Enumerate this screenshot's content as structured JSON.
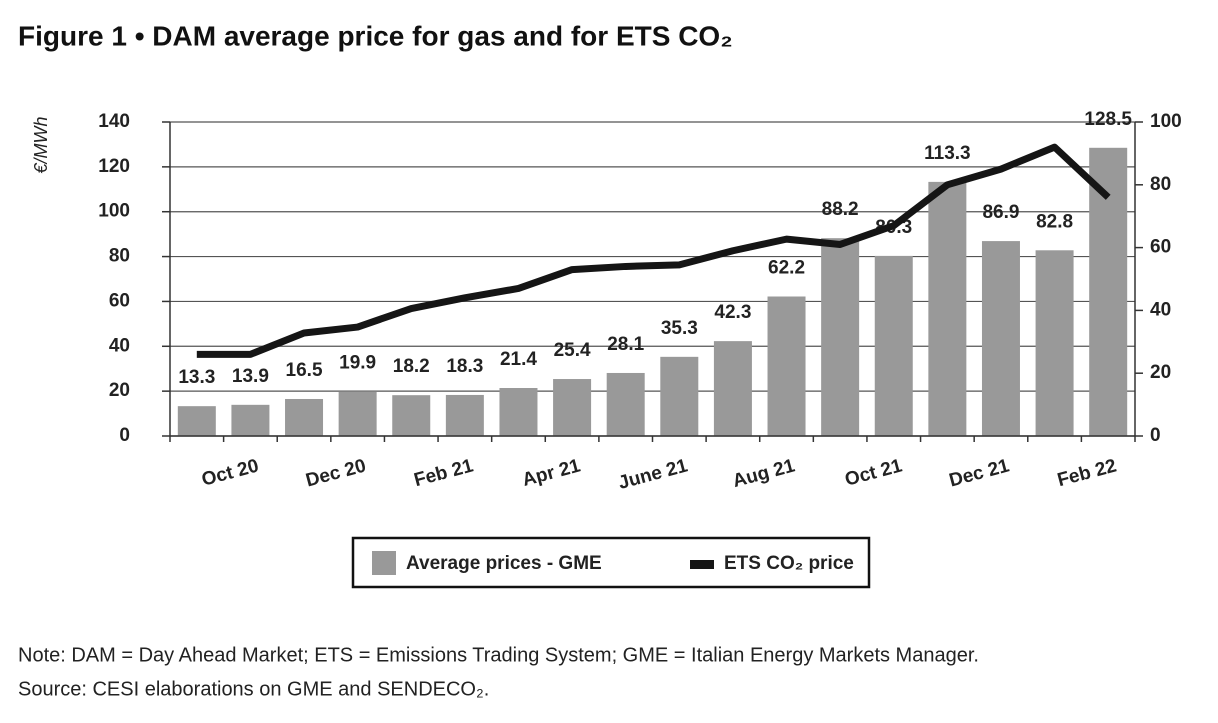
{
  "chart_data": {
    "type": "bar_line",
    "title": "Figure 1 • DAM average price for gas and for ETS CO₂",
    "y_label": "€/MWh",
    "categories": [
      null,
      "Oct 20",
      null,
      "Dec 20",
      null,
      "Feb 21",
      null,
      "Apr 21",
      null,
      "June 21",
      null,
      "Aug 21",
      null,
      "Oct 21",
      null,
      "Dec 21",
      null,
      "Feb 22"
    ],
    "series": [
      {
        "name": "Average prices - GME",
        "color": "#999999",
        "type": "bar",
        "values": [
          13.3,
          13.9,
          16.5,
          19.9,
          18.2,
          18.3,
          21.4,
          25.4,
          28.1,
          35.3,
          42.3,
          62.2,
          88.2,
          80.3,
          113.3,
          86.9,
          82.8,
          128.5
        ]
      },
      {
        "name": "ETS CO₂ price",
        "color": "#151515",
        "type": "line",
        "axis": "y2",
        "values": [
          26,
          26,
          32.8,
          34.7,
          40.6,
          44,
          47,
          53,
          54,
          54.5,
          59,
          62.7,
          61,
          67,
          80,
          85,
          92,
          76
        ]
      }
    ],
    "ylim": [
      0,
      140
    ],
    "yticks": [
      0,
      20,
      40,
      60,
      80,
      100,
      120,
      140
    ],
    "y2lim": [
      0,
      100
    ],
    "y2ticks": [
      0,
      20,
      40,
      60,
      80,
      100
    ],
    "grid": true,
    "notes": [
      "Note: DAM = Day Ahead Market; ETS = Emissions Trading System; GME = Italian Energy Markets Manager.",
      "Source: CESI elaborations on GME and SENDECO₂."
    ]
  }
}
